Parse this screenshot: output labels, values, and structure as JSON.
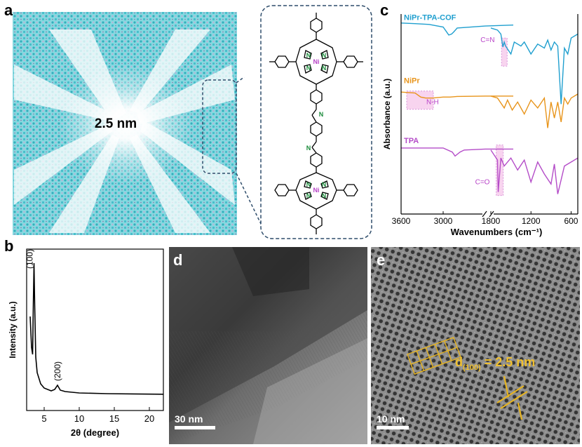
{
  "panels": {
    "a": {
      "label": "a",
      "pore_label": "2.5 nm",
      "metal_label": "Ni",
      "n_label": "N"
    },
    "b": {
      "label": "b",
      "peak_labels": [
        "(100)",
        "(200)"
      ]
    },
    "c": {
      "label": "c",
      "annotations": [
        "C=N",
        "N-H",
        "C=O"
      ]
    },
    "d": {
      "label": "d",
      "scale_bar": "30 nm"
    },
    "e": {
      "label": "e",
      "scale_bar": "10 nm",
      "d_spacing_main": "d",
      "d_spacing_sub": "(100)",
      "d_spacing_value": " = 2.5 nm"
    }
  },
  "colors": {
    "cof": "#1f9fcf",
    "nipr": "#e8941a",
    "tpa": "#b44cc8",
    "highlight": "#f4b8e6",
    "pore_cyan": "#3cc0cf",
    "tem_gold": "#e6b422"
  },
  "chart_data": [
    {
      "type": "line",
      "panel": "b",
      "xlabel": "2θ (degree)",
      "ylabel": "Intensity (a.u.)",
      "xlim": [
        2.5,
        22
      ],
      "x_ticks": [
        5,
        10,
        15,
        20
      ],
      "series": [
        {
          "x": [
            3.0,
            3.2,
            3.35,
            3.45,
            3.55,
            3.65,
            3.8,
            4.0,
            4.5,
            5.0,
            6.0,
            6.5,
            6.9,
            7.3,
            8.0,
            10,
            14,
            18,
            22
          ],
          "y": [
            0.62,
            0.4,
            0.35,
            0.7,
            1.0,
            0.7,
            0.33,
            0.22,
            0.14,
            0.11,
            0.09,
            0.1,
            0.13,
            0.095,
            0.085,
            0.075,
            0.07,
            0.068,
            0.066
          ]
        }
      ]
    },
    {
      "type": "line",
      "panel": "c",
      "xlabel": "Wavenumbers (cm⁻¹)",
      "ylabel": "Absorbance (a.u.)",
      "x_ticks": [
        "3600",
        "3000",
        "1800",
        "1200",
        "600"
      ],
      "axis_break": true,
      "series": [
        {
          "name": "NiPr-TPA-COF",
          "color": "#1f9fcf",
          "x": [
            3600,
            3400,
            3200,
            3000,
            2920,
            2880,
            2850,
            2800,
            2400,
            2000,
            1800,
            1700,
            1650,
            1620,
            1600,
            1580,
            1500,
            1450,
            1350,
            1300,
            1200,
            1100,
            1000,
            950,
            900,
            850,
            800,
            750,
            700,
            650,
            600,
            500
          ],
          "y": [
            0.955,
            0.952,
            0.948,
            0.935,
            0.895,
            0.9,
            0.91,
            0.93,
            0.94,
            0.945,
            0.93,
            0.92,
            0.9,
            0.835,
            0.86,
            0.84,
            0.8,
            0.86,
            0.84,
            0.86,
            0.8,
            0.85,
            0.83,
            0.87,
            0.82,
            0.86,
            0.84,
            0.55,
            0.83,
            0.8,
            0.88,
            0.9
          ]
        },
        {
          "name": "NiPr",
          "color": "#e8941a",
          "x": [
            3600,
            3400,
            3320,
            3250,
            3150,
            3000,
            2900,
            2800,
            2400,
            2000,
            1800,
            1700,
            1600,
            1550,
            1480,
            1400,
            1300,
            1200,
            1100,
            1000,
            950,
            900,
            850,
            800,
            750,
            700,
            650,
            600,
            500
          ],
          "y": [
            0.61,
            0.605,
            0.585,
            0.58,
            0.58,
            0.585,
            0.585,
            0.588,
            0.59,
            0.59,
            0.59,
            0.58,
            0.53,
            0.57,
            0.52,
            0.56,
            0.5,
            0.57,
            0.53,
            0.58,
            0.43,
            0.56,
            0.48,
            0.56,
            0.46,
            0.58,
            0.55,
            0.58,
            0.6
          ]
        },
        {
          "name": "TPA",
          "color": "#b44cc8",
          "x": [
            3600,
            3400,
            3200,
            3000,
            2870,
            2830,
            2760,
            2700,
            2400,
            2000,
            1800,
            1700,
            1690,
            1650,
            1600,
            1500,
            1400,
            1300,
            1200,
            1100,
            1000,
            900,
            850,
            800,
            700,
            600,
            500
          ],
          "y": [
            0.33,
            0.33,
            0.33,
            0.33,
            0.31,
            0.29,
            0.31,
            0.32,
            0.325,
            0.325,
            0.32,
            0.27,
            0.11,
            0.28,
            0.24,
            0.28,
            0.22,
            0.27,
            0.16,
            0.26,
            0.2,
            0.15,
            0.25,
            0.1,
            0.24,
            0.26,
            0.28
          ]
        }
      ]
    }
  ]
}
